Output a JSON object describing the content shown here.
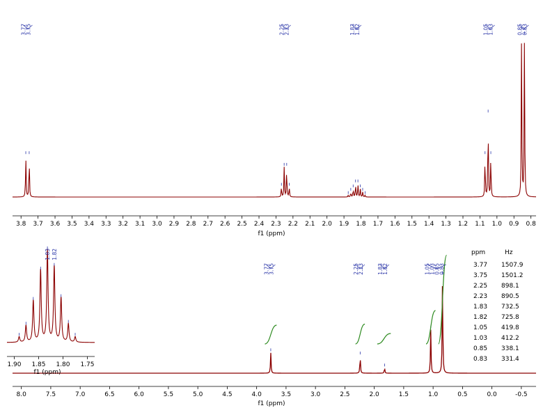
{
  "chart_data": [
    {
      "type": "line",
      "xlabel": "f1 (ppm)",
      "xlim": [
        3.85,
        0.77
      ],
      "x_ticks": [
        "3.8",
        "3.7",
        "3.6",
        "3.5",
        "3.4",
        "3.3",
        "3.2",
        "3.1",
        "3.0",
        "2.9",
        "2.8",
        "2.7",
        "2.6",
        "2.5",
        "2.4",
        "2.3",
        "2.2",
        "2.1",
        "2.0",
        "1.9",
        "1.8",
        "1.7",
        "1.6",
        "1.5",
        "1.4",
        "1.3",
        "1.2",
        "1.1",
        "1.0",
        "0.9",
        "0.8"
      ],
      "peak_labels": [
        {
          "group": [
            "3.77",
            "3.75"
          ],
          "ppm": 3.76
        },
        {
          "group": [
            "2.25",
            "2.23"
          ],
          "ppm": 2.24
        },
        {
          "group": [
            "1.83",
            "1.82"
          ],
          "ppm": 1.825
        },
        {
          "group": [
            "1.05",
            "1.03"
          ],
          "ppm": 1.04
        },
        {
          "group": [
            "0.85",
            "0.83"
          ],
          "ppm": 0.84
        }
      ],
      "peaks": [
        {
          "ppm": 3.772,
          "height": 0.25
        },
        {
          "ppm": 3.752,
          "height": 0.25
        },
        {
          "ppm": 2.268,
          "height": 0.06
        },
        {
          "ppm": 2.252,
          "height": 0.18
        },
        {
          "ppm": 2.237,
          "height": 0.18
        },
        {
          "ppm": 2.222,
          "height": 0.06
        },
        {
          "ppm": 1.875,
          "height": 0.01
        },
        {
          "ppm": 1.86,
          "height": 0.03
        },
        {
          "ppm": 1.846,
          "height": 0.05
        },
        {
          "ppm": 1.832,
          "height": 0.08
        },
        {
          "ppm": 1.818,
          "height": 0.08
        },
        {
          "ppm": 1.804,
          "height": 0.05
        },
        {
          "ppm": 1.79,
          "height": 0.03
        },
        {
          "ppm": 1.776,
          "height": 0.01
        },
        {
          "ppm": 1.052,
          "height": 0.5
        },
        {
          "ppm": 1.036,
          "height": 0.25
        },
        {
          "ppm": 1.07,
          "height": 0.25
        },
        {
          "ppm": 0.855,
          "height": 1.0
        },
        {
          "ppm": 0.838,
          "height": 0.97
        }
      ]
    },
    {
      "type": "line",
      "xlabel": "f1 (ppm)",
      "xlim": [
        8.15,
        -0.75
      ],
      "x_ticks": [
        "8.0",
        "7.5",
        "7.0",
        "6.5",
        "6.0",
        "5.5",
        "5.0",
        "4.5",
        "4.0",
        "3.5",
        "3.0",
        "2.5",
        "2.0",
        "1.5",
        "1.0",
        "0.5",
        "0.0",
        "-0.5"
      ],
      "peak_labels": [
        {
          "group": [
            "3.77",
            "3.75"
          ],
          "ppm": 3.76
        },
        {
          "group": [
            "2.25",
            "2.23"
          ],
          "ppm": 2.24
        },
        {
          "group": [
            "1.83",
            "1.82"
          ],
          "ppm": 1.825
        },
        {
          "group": [
            "1.05",
            "1.03",
            "0.85",
            "0.83"
          ],
          "ppm": 0.94
        }
      ],
      "peaks": [
        {
          "ppm": 3.76,
          "height": 0.19
        },
        {
          "ppm": 2.24,
          "height": 0.16
        },
        {
          "ppm": 1.825,
          "height": 0.05
        },
        {
          "ppm": 1.04,
          "height": 0.4
        },
        {
          "ppm": 0.84,
          "height": 0.9
        }
      ],
      "integrals": [
        {
          "from": 3.86,
          "to": 3.66,
          "ppm": 3.76
        },
        {
          "from": 2.32,
          "to": 2.16,
          "ppm": 2.24
        },
        {
          "from": 1.95,
          "to": 1.72,
          "ppm": 1.83
        },
        {
          "from": 1.12,
          "to": 0.96,
          "ppm": 1.04
        },
        {
          "from": 0.91,
          "to": 0.77,
          "ppm": 0.84
        }
      ]
    },
    {
      "type": "line",
      "xlabel": "f1 (ppm)",
      "xlim": [
        1.915,
        1.735
      ],
      "x_ticks": [
        "1.90",
        "1.85",
        "1.80",
        "1.75"
      ],
      "peak_labels": [
        {
          "label": "1.83",
          "ppm": 1.832
        },
        {
          "label": "1.82",
          "ppm": 1.818
        }
      ],
      "peaks": [
        {
          "ppm": 1.89,
          "height": 0.06
        },
        {
          "ppm": 1.876,
          "height": 0.18
        },
        {
          "ppm": 1.861,
          "height": 0.45
        },
        {
          "ppm": 1.846,
          "height": 0.78
        },
        {
          "ppm": 1.832,
          "height": 1.0
        },
        {
          "ppm": 1.818,
          "height": 0.82
        },
        {
          "ppm": 1.804,
          "height": 0.48
        },
        {
          "ppm": 1.789,
          "height": 0.2
        },
        {
          "ppm": 1.775,
          "height": 0.06
        }
      ]
    }
  ],
  "peak_table": {
    "headers": [
      "ppm",
      "Hz"
    ],
    "rows": [
      [
        "3.77",
        "1507.9"
      ],
      [
        "3.75",
        "1501.2"
      ],
      [
        "2.25",
        "898.1"
      ],
      [
        "2.23",
        "890.5"
      ],
      [
        "1.83",
        "732.5"
      ],
      [
        "1.82",
        "725.8"
      ],
      [
        "1.05",
        "419.8"
      ],
      [
        "1.03",
        "412.2"
      ],
      [
        "0.85",
        "338.1"
      ],
      [
        "0.83",
        "331.4"
      ]
    ]
  },
  "colors": {
    "spectrum": "#8b0000",
    "integral": "#2d8a1f",
    "peak_label": "#2b36a8"
  }
}
